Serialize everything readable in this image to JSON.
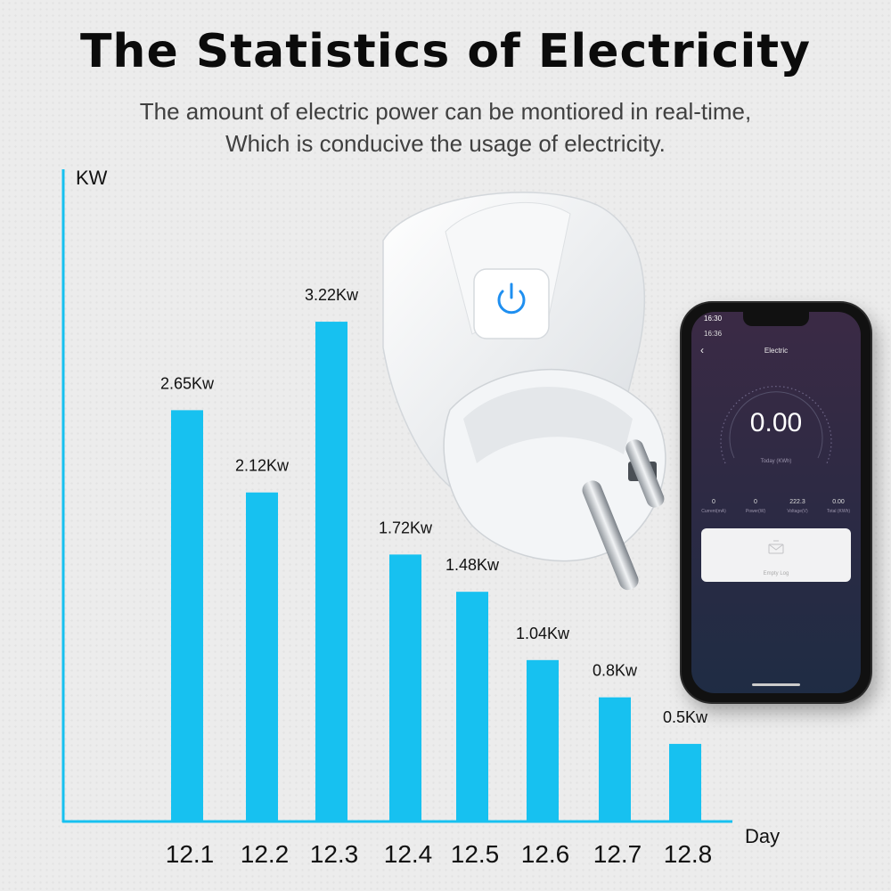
{
  "header": {
    "title": "The Statistics of Electricity",
    "subtitle_line1": "The amount of electric power can be montiored in real-time,",
    "subtitle_line2": "Which is conducive the usage of electricity."
  },
  "chart_data": {
    "type": "bar",
    "categories": [
      "12.1",
      "12.2",
      "12.3",
      "12.4",
      "12.5",
      "12.6",
      "12.7",
      "12.8"
    ],
    "values": [
      2.65,
      2.12,
      3.22,
      1.72,
      1.48,
      1.04,
      0.8,
      0.5
    ],
    "data_labels": [
      "2.65Kw",
      "2.12Kw",
      "3.22Kw",
      "1.72Kw",
      "1.48Kw",
      "1.04Kw",
      "0.8Kw",
      "0.5Kw"
    ],
    "ylabel": "KW",
    "xlabel": "Day",
    "grid": false,
    "bar_color": "#17c1f0",
    "axis_color": "#17c1f0"
  },
  "phone": {
    "outer_time": "16:30",
    "inner_time": "16:36",
    "app_title": "Electric",
    "reading": "0.00",
    "reading_label": "Today (KWh)",
    "stats": [
      {
        "value": "0",
        "label": "Current(mA)"
      },
      {
        "value": "0",
        "label": "Power(W)"
      },
      {
        "value": "222.3",
        "label": "Voltage(V)"
      },
      {
        "value": "0.00",
        "label": "Total (KWh)"
      }
    ],
    "empty_log": "Empty Log"
  },
  "colors": {
    "accent": "#17c1f0",
    "power_button": "#1f8ff0"
  },
  "icons": [
    "power-icon",
    "back-arrow-icon",
    "empty-log-icon"
  ]
}
